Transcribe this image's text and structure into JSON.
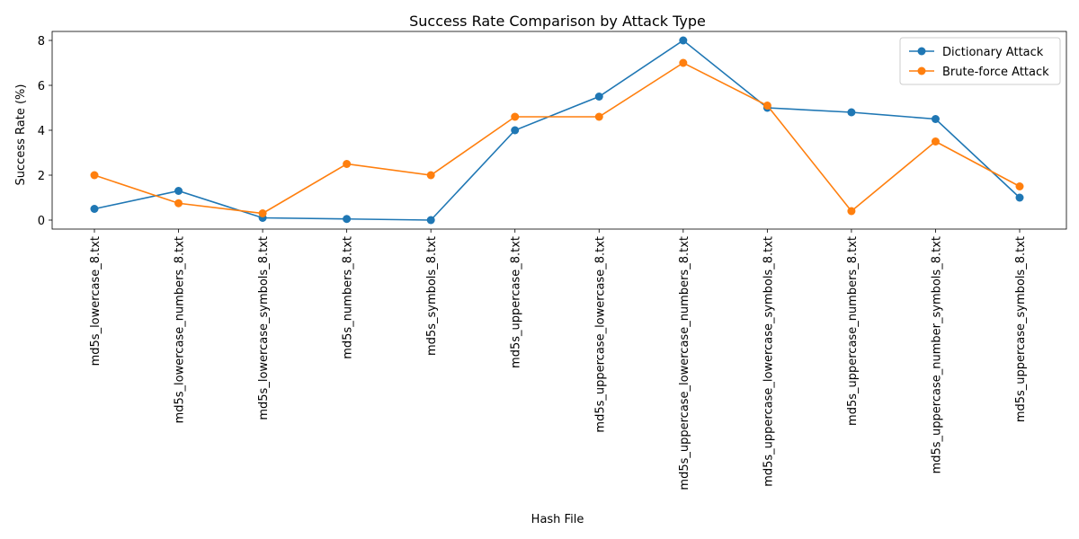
{
  "chart_data": {
    "type": "line",
    "title": "Success Rate Comparison by Attack Type",
    "xlabel": "Hash File",
    "ylabel": "Success Rate (%)",
    "categories": [
      "md5s_lowercase_8.txt",
      "md5s_lowercase_numbers_8.txt",
      "md5s_lowercase_symbols_8.txt",
      "md5s_numbers_8.txt",
      "md5s_symbols_8.txt",
      "md5s_uppercase_8.txt",
      "md5s_uppercase_lowercase_8.txt",
      "md5s_uppercase_lowercase_numbers_8.txt",
      "md5s_uppercase_lowercase_symbols_8.txt",
      "md5s_uppercase_numbers_8.txt",
      "md5s_uppercase_number_symbols_8.txt",
      "md5s_uppercase_symbols_8.txt"
    ],
    "series": [
      {
        "name": "Dictionary Attack",
        "color": "#1f77b4",
        "values": [
          0.5,
          1.3,
          0.1,
          0.05,
          0.0,
          4.0,
          5.5,
          8.0,
          5.0,
          4.8,
          4.5,
          1.0
        ]
      },
      {
        "name": "Brute-force Attack",
        "color": "#ff7f0e",
        "values": [
          2.0,
          0.75,
          0.3,
          2.5,
          2.0,
          4.6,
          4.6,
          7.0,
          5.1,
          0.4,
          3.5,
          1.5
        ]
      }
    ],
    "ylim": [
      -0.4,
      8.4
    ],
    "yticks": [
      0,
      2,
      4,
      6,
      8
    ],
    "legend": "top-right",
    "grid": false
  }
}
